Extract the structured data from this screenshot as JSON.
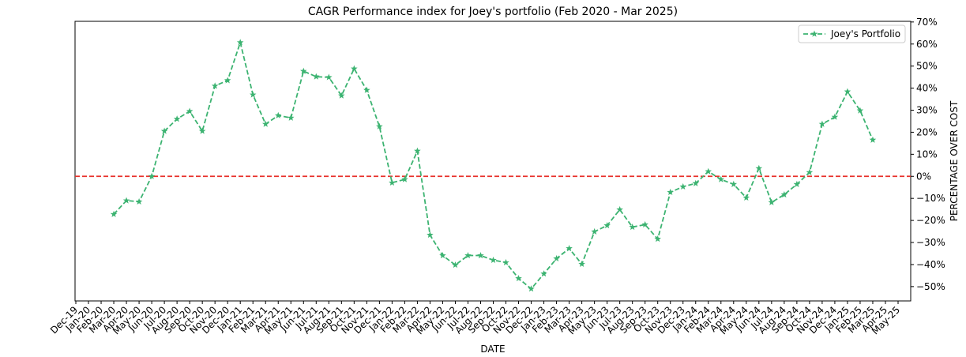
{
  "chart_data": {
    "type": "line",
    "title": "CAGR Performance index for Joey's portfolio (Feb 2020 - Mar 2025)",
    "x_label": "DATE",
    "y_label": "PERCENTAGE OVER COST",
    "categories": [
      "Dec-19",
      "Jan-20",
      "Feb-20",
      "Mar-20",
      "Apr-20",
      "May-20",
      "Jun-20",
      "Jul-20",
      "Aug-20",
      "Sep-20",
      "Oct-20",
      "Nov-20",
      "Dec-20",
      "Jan-21",
      "Feb-21",
      "Mar-21",
      "Apr-21",
      "May-21",
      "Jun-21",
      "Jul-21",
      "Aug-21",
      "Sep-21",
      "Oct-21",
      "Nov-21",
      "Dec-21",
      "Jan-22",
      "Feb-22",
      "Mar-22",
      "Apr-22",
      "May-22",
      "Jun-22",
      "Jul-22",
      "Aug-22",
      "Sep-22",
      "Oct-22",
      "Nov-22",
      "Dec-22",
      "Jan-23",
      "Feb-23",
      "Mar-23",
      "Apr-23",
      "May-23",
      "Jun-23",
      "Jul-23",
      "Aug-23",
      "Sep-23",
      "Oct-23",
      "Nov-23",
      "Dec-23",
      "Jan-24",
      "Feb-24",
      "Mar-24",
      "Apr-24",
      "May-24",
      "Jun-24",
      "Jul-24",
      "Aug-24",
      "Sep-24",
      "Oct-24",
      "Nov-24",
      "Dec-24",
      "Jan-25",
      "Feb-25",
      "Mar-25",
      "Apr-25",
      "May-25"
    ],
    "series": [
      {
        "name": "Joey's Portfolio",
        "color": "#3cb371",
        "values": [
          null,
          null,
          null,
          -17.2,
          -11,
          -11.5,
          0,
          20.5,
          26,
          29.5,
          20.5,
          41,
          43.5,
          60.7,
          37,
          23.7,
          27.6,
          26.5,
          47.7,
          45.2,
          44.9,
          36.6,
          48.8,
          39.1,
          22.6,
          -2.9,
          -1.4,
          11.5,
          -26.6,
          -35.9,
          -40.2,
          -35.9,
          -35.9,
          -38,
          -39.1,
          -46.3,
          -51,
          -44.2,
          -37.3,
          -32.7,
          -39.8,
          -25.1,
          -22.3,
          -15.1,
          -23,
          -21.9,
          -28.4,
          -7.2,
          -4.7,
          -3.2,
          2.2,
          -1.4,
          -3.6,
          -9.7,
          3.6,
          -11.8,
          -8.3,
          -3.6,
          1.8,
          23.7,
          26.9,
          38.4,
          29.8,
          16.5,
          null,
          null
        ]
      }
    ],
    "ylim": [
      -56.5,
      70.3
    ],
    "yticks": [
      {
        "value": -50,
        "label": "−50%"
      },
      {
        "value": -40,
        "label": "−40%"
      },
      {
        "value": -30,
        "label": "−30%"
      },
      {
        "value": -20,
        "label": "−20%"
      },
      {
        "value": -10,
        "label": "−10%"
      },
      {
        "value": 0,
        "label": "0%"
      },
      {
        "value": 10,
        "label": "10%"
      },
      {
        "value": 20,
        "label": "20%"
      },
      {
        "value": 30,
        "label": "30%"
      },
      {
        "value": 40,
        "label": "40%"
      },
      {
        "value": 50,
        "label": "50%"
      },
      {
        "value": 60,
        "label": "60%"
      },
      {
        "value": 70,
        "label": "70%"
      }
    ],
    "y_axis_side": "right",
    "reference_line": {
      "value": 0,
      "color": "#e8302a"
    },
    "legend": "upper right",
    "grid": false
  }
}
